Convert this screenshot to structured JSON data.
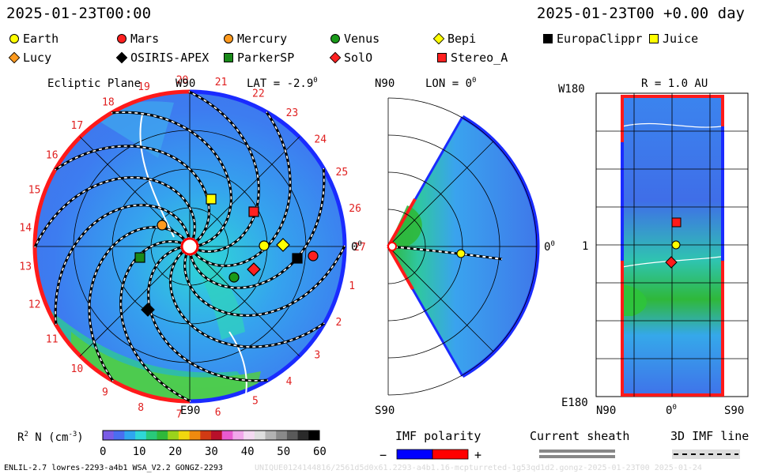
{
  "header": {
    "left_timestamp": "2025-01-23T00:00",
    "right_timestamp": "2025-01-23T00 +0.00 day"
  },
  "legend": [
    {
      "name": "Earth",
      "shape": "circle",
      "color": "#ffff00"
    },
    {
      "name": "Mars",
      "shape": "circle",
      "color": "#ff2020"
    },
    {
      "name": "Mercury",
      "shape": "circle",
      "color": "#ff9a1e"
    },
    {
      "name": "Venus",
      "shape": "circle",
      "color": "#1a9a1a"
    },
    {
      "name": "Bepi",
      "shape": "diamond",
      "color": "#ffff00"
    },
    {
      "name": "EuropaClippr",
      "shape": "square",
      "color": "#000000"
    },
    {
      "name": "Juice",
      "shape": "square",
      "color": "#ffff00"
    },
    {
      "name": "Lucy",
      "shape": "diamond",
      "color": "#ff9a1e"
    },
    {
      "name": "OSIRIS-APEX",
      "shape": "diamond",
      "color": "#000000"
    },
    {
      "name": "ParkerSP",
      "shape": "square",
      "color": "#1a8a1a"
    },
    {
      "name": "SolO",
      "shape": "diamond",
      "color": "#ff2020"
    },
    {
      "name": "Stereo_A",
      "shape": "square",
      "color": "#ff2020"
    }
  ],
  "panels": {
    "ecliptic": {
      "title": "Ecliptic Plane",
      "lat": "LAT = -2.9",
      "deg": "0",
      "top_label": "W90",
      "bottom_label": "E90",
      "right_label": "0",
      "right_deg": "0",
      "sector_numbers": [
        "1",
        "2",
        "3",
        "4",
        "5",
        "6",
        "7",
        "8",
        "9",
        "10",
        "11",
        "12",
        "13",
        "14",
        "15",
        "16",
        "17",
        "18",
        "19",
        "20",
        "21",
        "22",
        "23",
        "24",
        "25",
        "26",
        "27"
      ]
    },
    "meridional": {
      "top_left": "N90",
      "lon": "LON = 0",
      "deg": "0",
      "bottom_left": "S90",
      "right_label": "0",
      "right_deg": "0"
    },
    "radial": {
      "r_label": "R = 1.0 AU",
      "top_left": "W180",
      "mid_left": "1",
      "bottom_left": "E180",
      "x_left": "N90",
      "x_mid": "0",
      "x_mid_deg": "0",
      "x_right": "S90"
    }
  },
  "colorbar": {
    "label_main": "R",
    "label_sup": "2",
    "label_rest": " N (cm",
    "label_exp": "-3",
    "label_end": ")",
    "ticks": [
      "0",
      "10",
      "20",
      "30",
      "40",
      "50",
      "60"
    ],
    "colors": [
      "#7a5ce6",
      "#4a6ef0",
      "#2fa6f0",
      "#2fd7d7",
      "#29c97a",
      "#2fb83a",
      "#9ad31c",
      "#f2d80e",
      "#f08a0e",
      "#d23a14",
      "#b8102a",
      "#e95ad0",
      "#f2a6ea",
      "#f4d9f1",
      "#dedede",
      "#b3b3b3",
      "#8a8a8a",
      "#5a5a5a",
      "#2a2a2a",
      "#000000"
    ]
  },
  "imf": {
    "title": "IMF polarity",
    "minus": "−",
    "plus": "+",
    "neg_color": "#0000ff",
    "pos_color": "#ff0000"
  },
  "sheath": {
    "title": "Current sheath"
  },
  "line3d": {
    "title": "3D IMF line"
  },
  "footer": {
    "left": "ENLIL-2.7 lowres-2293-a4b1 WSA_V2.2 GONGZ-2293",
    "right": "UNIQUE0124144816/2561d5d0x61.2293-a4b1.16-mcpturreted-1g53qd1d2.gongz-2025-01-23T00   2025-01-24"
  },
  "chart_data": [
    {
      "type": "heatmap",
      "title": "Ecliptic Plane",
      "subtitle": "LAT = -2.9°",
      "quantity": "R² N (cm⁻³)",
      "color_range": [
        0,
        60
      ],
      "bodies": [
        "Earth",
        "Mars",
        "Mercury",
        "Venus",
        "Bepi",
        "EuropaClippr",
        "Juice",
        "Lucy",
        "OSIRIS-APEX",
        "ParkerSP",
        "SolO",
        "Stereo_A"
      ],
      "axis_labels": [
        "W90",
        "E90",
        "0°"
      ]
    },
    {
      "type": "heatmap",
      "title": "LON = 0°",
      "quantity": "R² N (cm⁻³)",
      "color_range": [
        0,
        60
      ],
      "axis_labels": [
        "N90",
        "S90",
        "0°"
      ]
    },
    {
      "type": "heatmap",
      "title": "R = 1.0 AU",
      "quantity": "R² N (cm⁻³)",
      "color_range": [
        0,
        60
      ],
      "ylabels": [
        "W180",
        "1",
        "E180"
      ],
      "xlabels": [
        "N90",
        "0°",
        "S90"
      ]
    }
  ]
}
